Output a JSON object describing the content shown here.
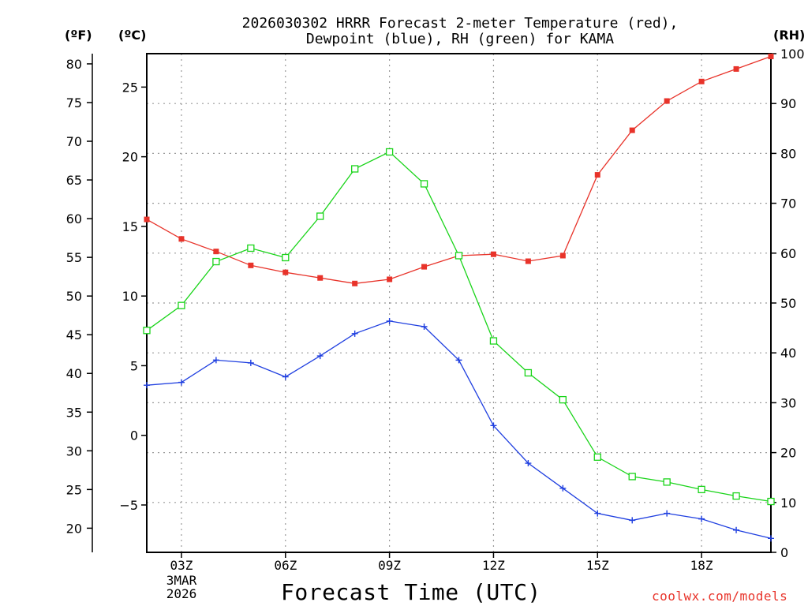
{
  "title": {
    "line1": "2026030302 HRRR Forecast 2-meter Temperature (red),",
    "line2": "Dewpoint (blue), RH (green) for KAMA"
  },
  "unit_labels": {
    "fahrenheit": "(ºF)",
    "celsius": "(ºC)",
    "rh": "(RH)"
  },
  "x_title": "Forecast Time (UTC)",
  "credit": "coolwx.com/models",
  "date_label": {
    "day": "3MAR",
    "year": "2026"
  },
  "colors": {
    "temperature": "#e8332a",
    "dewpoint": "#1f3fe0",
    "rh": "#19d419",
    "grid": "#9a9a9a",
    "credit": "#e8332a"
  },
  "chart_data": {
    "type": "line",
    "title": "2026030302 HRRR Forecast 2-meter Temperature (red), Dewpoint (blue), RH (green) for KAMA",
    "xlabel": "Forecast Time (UTC)",
    "x_hours": [
      2,
      3,
      4,
      5,
      6,
      7,
      8,
      9,
      10,
      11,
      12,
      13,
      14,
      15,
      16,
      17,
      18,
      19,
      20
    ],
    "xlim": [
      2,
      20
    ],
    "x_ticks": [
      {
        "hour": 3,
        "label": "03Z"
      },
      {
        "hour": 6,
        "label": "06Z"
      },
      {
        "hour": 9,
        "label": "09Z"
      },
      {
        "hour": 12,
        "label": "12Z"
      },
      {
        "hour": 15,
        "label": "15Z"
      },
      {
        "hour": 18,
        "label": "18Z"
      }
    ],
    "left_axis_celsius": {
      "ylabel": "(ºC)",
      "ylim": [
        -8.4,
        27.4
      ],
      "ticks": [
        25,
        20,
        15,
        10,
        5,
        0,
        -5
      ],
      "tick_labels": [
        "25",
        "20",
        "15",
        "10",
        "5",
        "0",
        "−5"
      ]
    },
    "far_left_axis_fahrenheit": {
      "ylabel": "(ºF)",
      "ticks": [
        80,
        75,
        70,
        65,
        60,
        55,
        50,
        45,
        40,
        35,
        30,
        25,
        20
      ],
      "tick_labels": [
        "80",
        "75",
        "70",
        "65",
        "60",
        "55",
        "50",
        "45",
        "40",
        "35",
        "30",
        "25",
        "20"
      ]
    },
    "right_axis_rh": {
      "ylabel": "(RH)",
      "ylim": [
        0,
        100
      ],
      "ticks": [
        100,
        90,
        80,
        70,
        60,
        50,
        40,
        30,
        20,
        10,
        0
      ],
      "tick_labels": [
        "100",
        "90",
        "80",
        "70",
        "60",
        "50",
        "40",
        "30",
        "20",
        "10",
        "0"
      ]
    },
    "series": [
      {
        "name": "Temperature",
        "unit": "C",
        "axis": "celsius",
        "color": "#e8332a",
        "marker": "filled-square",
        "values": [
          15.5,
          14.1,
          13.2,
          12.2,
          11.7,
          11.3,
          10.9,
          11.2,
          12.1,
          12.9,
          13.0,
          12.5,
          12.9,
          18.7,
          21.9,
          24.0,
          25.4,
          26.3,
          27.2
        ]
      },
      {
        "name": "Dewpoint",
        "unit": "C",
        "axis": "celsius",
        "color": "#1f3fe0",
        "marker": "plus",
        "values": [
          3.6,
          3.8,
          5.4,
          5.2,
          4.2,
          5.7,
          7.3,
          8.2,
          7.8,
          5.4,
          0.7,
          -2.0,
          -3.8,
          -5.6,
          -6.1,
          -5.6,
          -6.0,
          -6.8,
          -7.4
        ]
      },
      {
        "name": "RH",
        "unit": "%",
        "axis": "rh",
        "color": "#19d419",
        "marker": "open-square",
        "values": [
          44.5,
          49.5,
          58.3,
          61.0,
          59.1,
          67.4,
          76.9,
          80.3,
          73.9,
          59.5,
          42.4,
          36.0,
          30.6,
          19.1,
          15.2,
          14.1,
          12.6,
          11.3,
          10.2
        ]
      }
    ],
    "grid": true
  }
}
